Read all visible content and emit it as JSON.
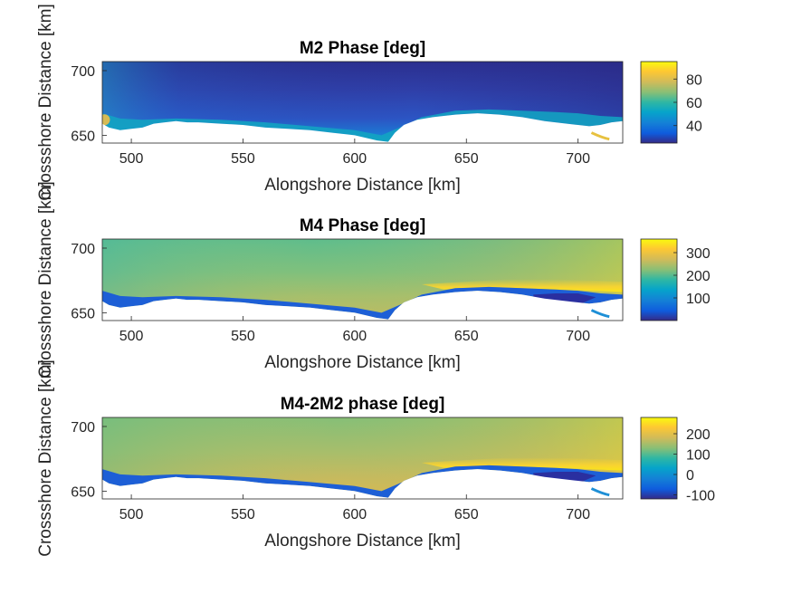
{
  "chart_data": [
    {
      "type": "heatmap",
      "title": "M2 Phase [deg]",
      "xlabel": "Alongshore Distance [km]",
      "ylabel": "Crossshore Distance [km]",
      "xlim": [
        487,
        720
      ],
      "ylim": [
        644,
        707
      ],
      "xticks": [
        500,
        550,
        600,
        650,
        700
      ],
      "yticks": [
        650,
        700
      ],
      "colormap": "parula",
      "colorbar": {
        "clim": [
          25,
          95
        ],
        "ticks": [
          40,
          60,
          80
        ]
      },
      "approx_field": {
        "offshore": 28,
        "mid_shelf": 35,
        "nearshore": 50,
        "coastal_max": 90
      }
    },
    {
      "type": "heatmap",
      "title": "M4 Phase [deg]",
      "xlabel": "Alongshore Distance [km]",
      "ylabel": "Crossshore Distance [km]",
      "xlim": [
        487,
        720
      ],
      "ylim": [
        644,
        707
      ],
      "xticks": [
        500,
        550,
        600,
        650,
        700
      ],
      "yticks": [
        650,
        700
      ],
      "colormap": "parula",
      "colorbar": {
        "clim": [
          0,
          360
        ],
        "ticks": [
          100,
          200,
          300
        ]
      },
      "approx_field": {
        "offshore": 180,
        "mid_shelf": 220,
        "nearshore_east": 320,
        "coastal_min": 20
      }
    },
    {
      "type": "heatmap",
      "title": "M4-2M2 phase [deg]",
      "xlabel": "Alongshore Distance [km]",
      "ylabel": "Crossshore Distance [km]",
      "xlim": [
        487,
        720
      ],
      "ylim": [
        644,
        707
      ],
      "xticks": [
        500,
        550,
        600,
        650,
        700
      ],
      "yticks": [
        650,
        700
      ],
      "colormap": "parula",
      "colorbar": {
        "clim": [
          -120,
          280
        ],
        "ticks": [
          -100,
          0,
          100,
          200
        ]
      },
      "approx_field": {
        "offshore": 130,
        "mid_shelf": 170,
        "nearshore_east": 260,
        "coastal_min": -100
      }
    }
  ]
}
